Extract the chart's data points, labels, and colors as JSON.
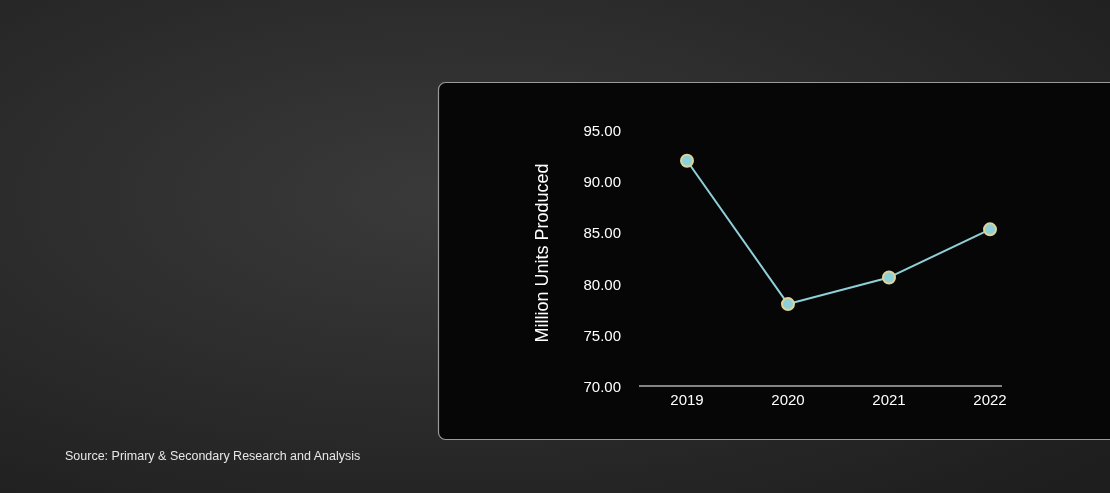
{
  "chart_data": {
    "type": "line",
    "ylabel": "Million Units Produced",
    "categories": [
      "2019",
      "2020",
      "2021",
      "2022"
    ],
    "values": [
      92.0,
      78.0,
      80.6,
      85.3
    ],
    "color": "#8fd0d8",
    "marker": "circle",
    "ylim": [
      70,
      95
    ],
    "yticks": [
      {
        "value": 70,
        "label": "70.00"
      },
      {
        "value": 75,
        "label": "75.00"
      },
      {
        "value": 80,
        "label": "80.00"
      },
      {
        "value": 85,
        "label": "85.00"
      },
      {
        "value": 90,
        "label": "90.00"
      },
      {
        "value": 95,
        "label": "95.00"
      }
    ],
    "annotations": [
      "Source: Primary & Secondary Research and Analysis"
    ]
  }
}
